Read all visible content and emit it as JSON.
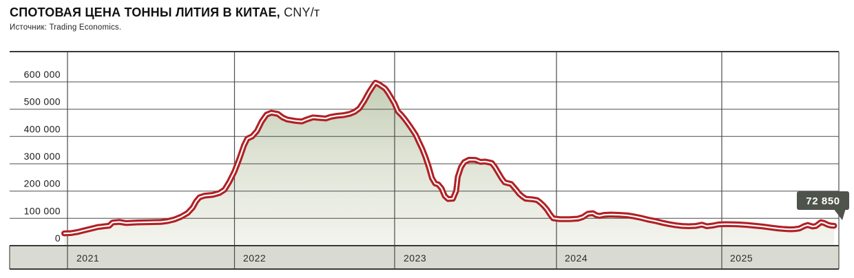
{
  "header": {
    "title_bold": "СПОТОВАЯ ЦЕНА ТОННЫ ЛИТИЯ В КИТАЕ,",
    "title_unit": " CNY/т",
    "source": "Источник: Trading Economics."
  },
  "chart_data": {
    "type": "area",
    "title": "СПОТОВАЯ ЦЕНА ТОННЫ ЛИТИЯ В КИТАЕ, CNY/т",
    "source": "Trading Economics",
    "ylabel": "CNY/т",
    "ylim": [
      0,
      711000
    ],
    "grid": true,
    "legend_position": "none",
    "y_ticks": [
      {
        "value": 600000,
        "label": "600 000"
      },
      {
        "value": 500000,
        "label": "500 000"
      },
      {
        "value": 400000,
        "label": "400 000"
      },
      {
        "value": 300000,
        "label": "300 000"
      },
      {
        "value": 200000,
        "label": "200 000"
      },
      {
        "value": 100000,
        "label": "100 000"
      },
      {
        "value": 0,
        "label": "0"
      }
    ],
    "years": [
      "2021",
      "2022",
      "2023",
      "2024",
      "2025"
    ],
    "last_value": 72850,
    "last_value_label": "72 850",
    "series": [
      {
        "name": "Спотовая цена тонны лития в Китае, CNY/т",
        "points": [
          [
            2020.98,
            45000
          ],
          [
            2021.02,
            46000
          ],
          [
            2021.06,
            50000
          ],
          [
            2021.1,
            56000
          ],
          [
            2021.14,
            62000
          ],
          [
            2021.18,
            68000
          ],
          [
            2021.22,
            71000
          ],
          [
            2021.25,
            73000
          ],
          [
            2021.27,
            85000
          ],
          [
            2021.31,
            87000
          ],
          [
            2021.35,
            83000
          ],
          [
            2021.42,
            85000
          ],
          [
            2021.5,
            86000
          ],
          [
            2021.56,
            87000
          ],
          [
            2021.6,
            90000
          ],
          [
            2021.64,
            96000
          ],
          [
            2021.68,
            106000
          ],
          [
            2021.72,
            120000
          ],
          [
            2021.75,
            140000
          ],
          [
            2021.77,
            162000
          ],
          [
            2021.79,
            177000
          ],
          [
            2021.82,
            183000
          ],
          [
            2021.87,
            186000
          ],
          [
            2021.91,
            193000
          ],
          [
            2021.94,
            205000
          ],
          [
            2021.97,
            235000
          ],
          [
            2022.0,
            272000
          ],
          [
            2022.03,
            318000
          ],
          [
            2022.06,
            368000
          ],
          [
            2022.08,
            392000
          ],
          [
            2022.11,
            400000
          ],
          [
            2022.14,
            420000
          ],
          [
            2022.17,
            455000
          ],
          [
            2022.2,
            480000
          ],
          [
            2022.23,
            487000
          ],
          [
            2022.27,
            483000
          ],
          [
            2022.3,
            470000
          ],
          [
            2022.33,
            462000
          ],
          [
            2022.38,
            457000
          ],
          [
            2022.42,
            455000
          ],
          [
            2022.45,
            462000
          ],
          [
            2022.49,
            470000
          ],
          [
            2022.53,
            468000
          ],
          [
            2022.57,
            466000
          ],
          [
            2022.6,
            472000
          ],
          [
            2022.64,
            476000
          ],
          [
            2022.68,
            478000
          ],
          [
            2022.72,
            483000
          ],
          [
            2022.75,
            490000
          ],
          [
            2022.78,
            503000
          ],
          [
            2022.81,
            530000
          ],
          [
            2022.84,
            562000
          ],
          [
            2022.86,
            580000
          ],
          [
            2022.88,
            597000
          ],
          [
            2022.9,
            592000
          ],
          [
            2022.92,
            584000
          ],
          [
            2022.94,
            576000
          ],
          [
            2022.96,
            560000
          ],
          [
            2022.98,
            540000
          ],
          [
            2023.0,
            520000
          ],
          [
            2023.02,
            492000
          ],
          [
            2023.04,
            480000
          ],
          [
            2023.06,
            466000
          ],
          [
            2023.08,
            450000
          ],
          [
            2023.1,
            433000
          ],
          [
            2023.13,
            406000
          ],
          [
            2023.15,
            380000
          ],
          [
            2023.17,
            355000
          ],
          [
            2023.19,
            325000
          ],
          [
            2023.21,
            290000
          ],
          [
            2023.23,
            248000
          ],
          [
            2023.25,
            228000
          ],
          [
            2023.27,
            224000
          ],
          [
            2023.29,
            210000
          ],
          [
            2023.31,
            182000
          ],
          [
            2023.33,
            171000
          ],
          [
            2023.36,
            172000
          ],
          [
            2023.38,
            200000
          ],
          [
            2023.39,
            252000
          ],
          [
            2023.41,
            288000
          ],
          [
            2023.43,
            306000
          ],
          [
            2023.46,
            315000
          ],
          [
            2023.5,
            314000
          ],
          [
            2023.53,
            307000
          ],
          [
            2023.56,
            308000
          ],
          [
            2023.6,
            303000
          ],
          [
            2023.62,
            288000
          ],
          [
            2023.64,
            268000
          ],
          [
            2023.66,
            248000
          ],
          [
            2023.68,
            232000
          ],
          [
            2023.72,
            226000
          ],
          [
            2023.75,
            205000
          ],
          [
            2023.77,
            190000
          ],
          [
            2023.79,
            180000
          ],
          [
            2023.81,
            172000
          ],
          [
            2023.85,
            170000
          ],
          [
            2023.88,
            167000
          ],
          [
            2023.9,
            158000
          ],
          [
            2023.92,
            147000
          ],
          [
            2023.94,
            133000
          ],
          [
            2023.96,
            115000
          ],
          [
            2023.98,
            100000
          ],
          [
            2024.02,
            97000
          ],
          [
            2024.08,
            97000
          ],
          [
            2024.13,
            99000
          ],
          [
            2024.16,
            105000
          ],
          [
            2024.19,
            117000
          ],
          [
            2024.22,
            119000
          ],
          [
            2024.24,
            112000
          ],
          [
            2024.26,
            109000
          ],
          [
            2024.29,
            113000
          ],
          [
            2024.33,
            114000
          ],
          [
            2024.38,
            113000
          ],
          [
            2024.43,
            111000
          ],
          [
            2024.47,
            107000
          ],
          [
            2024.51,
            102000
          ],
          [
            2024.55,
            96000
          ],
          [
            2024.6,
            90000
          ],
          [
            2024.64,
            84000
          ],
          [
            2024.68,
            79000
          ],
          [
            2024.72,
            75000
          ],
          [
            2024.76,
            72000
          ],
          [
            2024.8,
            71000
          ],
          [
            2024.84,
            72000
          ],
          [
            2024.88,
            77000
          ],
          [
            2024.91,
            71000
          ],
          [
            2024.95,
            74000
          ],
          [
            2024.98,
            78000
          ],
          [
            2025.02,
            79000
          ],
          [
            2025.06,
            78500
          ],
          [
            2025.1,
            78000
          ],
          [
            2025.15,
            76000
          ],
          [
            2025.2,
            73000
          ],
          [
            2025.25,
            70000
          ],
          [
            2025.3,
            66000
          ],
          [
            2025.34,
            63000
          ],
          [
            2025.38,
            61000
          ],
          [
            2025.41,
            60000
          ],
          [
            2025.44,
            60500
          ],
          [
            2025.47,
            63000
          ],
          [
            2025.5,
            72000
          ],
          [
            2025.52,
            76000
          ],
          [
            2025.55,
            70000
          ],
          [
            2025.57,
            72000
          ],
          [
            2025.6,
            86000
          ],
          [
            2025.62,
            83000
          ],
          [
            2025.64,
            77000
          ],
          [
            2025.66,
            73500
          ],
          [
            2025.68,
            72850
          ]
        ]
      }
    ],
    "colors": {
      "line": "#b02125",
      "line_core": "#ffffff",
      "area_top": "#bac5a9",
      "area_mid": "#dfe4d6",
      "area_bottom": "#f3f4ee",
      "grid": "#4b4b4b",
      "band": "#d9dad1",
      "badge": "#4e544b",
      "badge_text": "#ffffff"
    }
  }
}
